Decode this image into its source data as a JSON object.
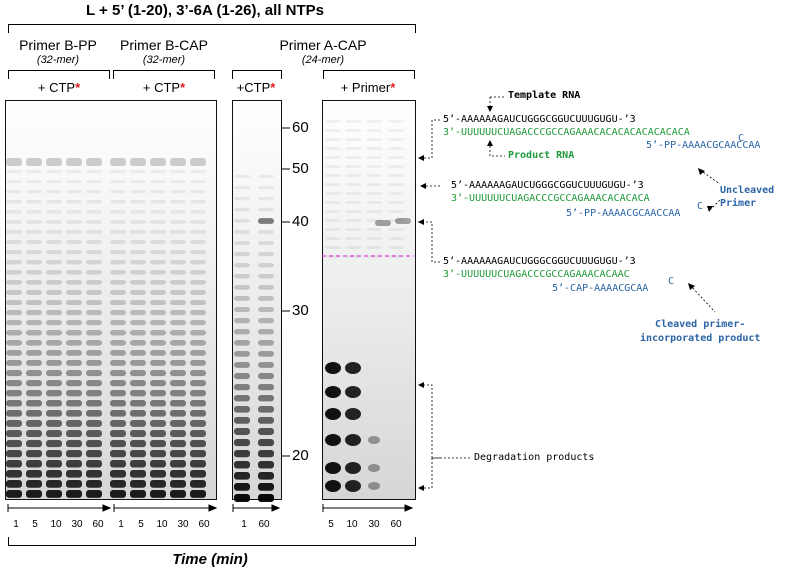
{
  "title": "L + 5’ (1-20), 3’-6A (1-26), all NTPs",
  "groups": [
    {
      "name": "Primer B-PP",
      "subtitle": "(32-mer)",
      "condition": "+ CTP",
      "star": "*"
    },
    {
      "name": "Primer B-CAP",
      "subtitle": "(32-mer)",
      "condition": "+ CTP",
      "star": "*"
    },
    {
      "name": "Primer A-CAP",
      "subtitle": "(24-mer)",
      "condition_left": "+CTP",
      "condition_right": "+ Primer",
      "star": "*"
    }
  ],
  "time_ticks": {
    "primer_b_pp": [
      "1",
      "5",
      "10",
      "30",
      "60"
    ],
    "primer_b_cap": [
      "1",
      "5",
      "10",
      "30",
      "60"
    ],
    "primer_a_cap_ctp": [
      "1",
      "60"
    ],
    "primer_a_cap_primer": [
      "5",
      "10",
      "30",
      "60"
    ]
  },
  "time_axis_label": "Time (min)",
  "size_markers": [
    "60",
    "50",
    "40",
    "30",
    "20"
  ],
  "annotations": {
    "template_rna": "Template RNA",
    "product_rna": "Product RNA",
    "uncleaved_primer": "Uncleaved\nPrimer",
    "cleaved_product": "Cleaved primer-\nincorporated product",
    "degradation": "Degradation products"
  },
  "sequences": {
    "block1": {
      "template": "5’-AAAAAAGAUCUGGGCGGUCUUUGUGU-’3",
      "product": "3’-UUUUUUCUAGACCCGCCAGAAACACACACACACACACA",
      "primer": "5’-PP-AAAACGCAACCAA",
      "primer_c": "C"
    },
    "block2": {
      "template": "5’-AAAAAAGAUCUGGGCGGUCUUUGUGU-’3",
      "product": "3’-UUUUUUCUAGACCCGCCAGAAACACACACA",
      "primer": "5’-PP-AAAACGCAACCAA",
      "primer_c": "C"
    },
    "block3": {
      "template": "5’-AAAAAAGAUCUGGGCGGUCUUUGUGU-’3",
      "product": "3’-UUUUUUCUAGACCCGCCAGAAACACAAC",
      "primer": "5’-CAP-AAAACGCAA",
      "primer_c": "C"
    }
  },
  "colors": {
    "green": "#1f9a3a",
    "blue": "#2b65a6",
    "star_red": "#e02020",
    "magenta_line": "#e040e0"
  }
}
